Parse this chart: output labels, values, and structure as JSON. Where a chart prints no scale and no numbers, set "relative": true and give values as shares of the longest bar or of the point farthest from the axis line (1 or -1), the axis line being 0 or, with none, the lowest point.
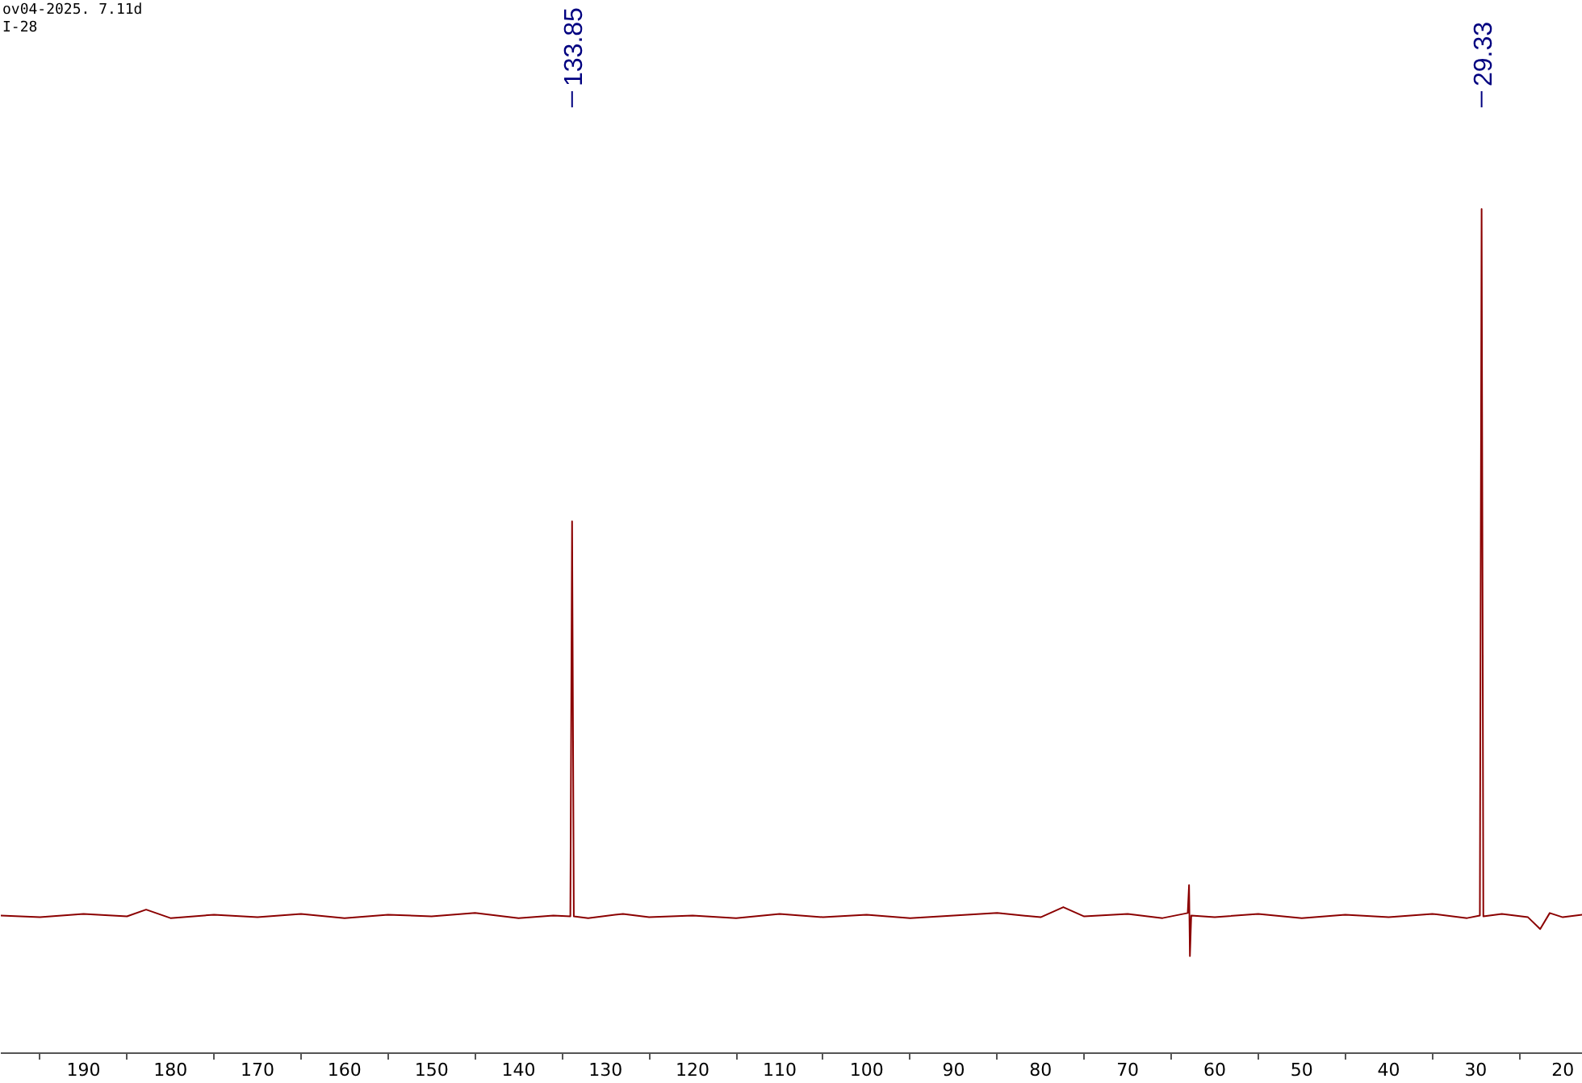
{
  "chart_data": {
    "type": "line",
    "relative": true,
    "xlim": [
      199.5,
      17.7
    ],
    "xticks": [
      {
        "value": 195,
        "label": null
      },
      190,
      {
        "value": 185,
        "label": null
      },
      180,
      {
        "value": 175,
        "label": null
      },
      170,
      {
        "value": 165,
        "label": null
      },
      160,
      {
        "value": 155,
        "label": null
      },
      150,
      {
        "value": 145,
        "label": null
      },
      140,
      {
        "value": 135,
        "label": null
      },
      130,
      {
        "value": 125,
        "label": null
      },
      120,
      {
        "value": 115,
        "label": null
      },
      110,
      {
        "value": 105,
        "label": null
      },
      100,
      {
        "value": 95,
        "label": null
      },
      90,
      {
        "value": 85,
        "label": null
      },
      80,
      {
        "value": 75,
        "label": null
      },
      70,
      {
        "value": 65,
        "label": null
      },
      60,
      {
        "value": 55,
        "label": null
      },
      50,
      {
        "value": 45,
        "label": null
      },
      40,
      {
        "value": 35,
        "label": null
      },
      30,
      {
        "value": 25,
        "label": null
      },
      20
    ],
    "series": [
      {
        "color": "#8b0000",
        "x": [
          199.5,
          195,
          190,
          185,
          182.8,
          180,
          175,
          170,
          165,
          160,
          155,
          150,
          145,
          140,
          136,
          134.05,
          133.85,
          133.65,
          132,
          128,
          125,
          120,
          115,
          110,
          105,
          100,
          95,
          90,
          85,
          80,
          77.4,
          75,
          70,
          66,
          63.1,
          62.95,
          62.85,
          62.7,
          60,
          55,
          50,
          45,
          40,
          35,
          31,
          29.53,
          29.33,
          29.13,
          27,
          24,
          22.6,
          21.5,
          20,
          17.7
        ],
        "values": [
          0.163,
          0.161,
          0.165,
          0.162,
          0.17,
          0.16,
          0.164,
          0.161,
          0.165,
          0.16,
          0.164,
          0.162,
          0.166,
          0.16,
          0.163,
          0.162,
          0.63,
          0.162,
          0.16,
          0.165,
          0.161,
          0.163,
          0.16,
          0.165,
          0.161,
          0.164,
          0.16,
          0.163,
          0.166,
          0.161,
          0.173,
          0.162,
          0.165,
          0.16,
          0.166,
          0.199,
          0.115,
          0.163,
          0.161,
          0.165,
          0.16,
          0.164,
          0.161,
          0.165,
          0.16,
          0.163,
          1,
          0.162,
          0.165,
          0.161,
          0.147,
          0.166,
          0.161,
          0.164
        ]
      }
    ],
    "annotations": [
      "ov04-2025. 7.11d",
      "I-28",
      {
        "text": "133.85",
        "x": 133.85
      },
      {
        "text": "29.33",
        "x": 29.33
      }
    ]
  }
}
